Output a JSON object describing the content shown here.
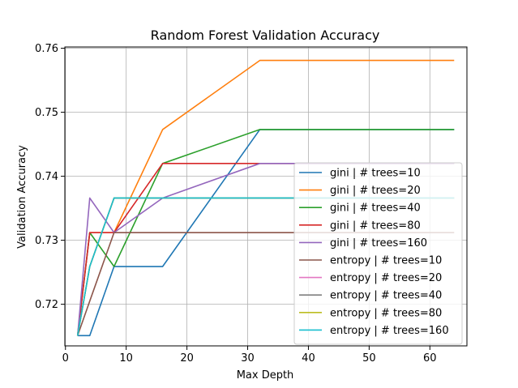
{
  "chart_data": {
    "type": "line",
    "title": "Random Forest Validation Accuracy",
    "xlabel": "Max Depth",
    "ylabel": "Validation Accuracy",
    "xlim": [
      -0.1,
      66.1
    ],
    "ylim": [
      0.7135,
      0.7602
    ],
    "xticks": [
      0,
      10,
      20,
      30,
      40,
      50,
      60
    ],
    "yticks": [
      0.72,
      0.73,
      0.74,
      0.75,
      0.76
    ],
    "ytick_labels": [
      "0.72",
      "0.73",
      "0.74",
      "0.75",
      "0.76"
    ],
    "grid": true,
    "legend_position": "lower right",
    "x": [
      2,
      4,
      8,
      16,
      32,
      64
    ],
    "series": [
      {
        "name": "gini | # trees=10",
        "color": "#1f77b4",
        "values": [
          0.7151,
          0.7151,
          0.7259,
          0.7259,
          0.7473,
          0.7473
        ]
      },
      {
        "name": "gini | # trees=20",
        "color": "#ff7f0e",
        "values": [
          0.7151,
          0.7312,
          0.7312,
          0.7473,
          0.7581,
          0.7581
        ]
      },
      {
        "name": "gini | # trees=40",
        "color": "#2ca02c",
        "values": [
          0.7151,
          0.7312,
          0.7259,
          0.742,
          0.7473,
          0.7473
        ]
      },
      {
        "name": "gini | # trees=80",
        "color": "#d62728",
        "values": [
          0.7151,
          0.7312,
          0.7312,
          0.742,
          0.742,
          0.742
        ]
      },
      {
        "name": "gini | # trees=160",
        "color": "#9467bd",
        "values": [
          0.7151,
          0.7366,
          0.7312,
          0.7366,
          0.742,
          0.742
        ]
      },
      {
        "name": "entropy | # trees=10",
        "color": "#8c564b",
        "values": [
          0.7151,
          0.7205,
          0.7312,
          0.7312,
          0.7312,
          0.7312
        ]
      },
      {
        "name": "entropy | # trees=20",
        "color": "#e377c2",
        "values": [
          0.7151,
          0.7259,
          0.7366,
          0.7366,
          0.7366,
          0.7366
        ]
      },
      {
        "name": "entropy | # trees=40",
        "color": "#7f7f7f",
        "values": [
          0.7151,
          0.7259,
          0.7366,
          0.7366,
          0.7366,
          0.7366
        ]
      },
      {
        "name": "entropy | # trees=80",
        "color": "#bcbd22",
        "values": [
          0.7151,
          0.7259,
          0.7366,
          0.7366,
          0.7366,
          0.7366
        ]
      },
      {
        "name": "entropy | # trees=160",
        "color": "#17becf",
        "values": [
          0.7151,
          0.7259,
          0.7366,
          0.7366,
          0.7366,
          0.7366
        ]
      }
    ]
  }
}
